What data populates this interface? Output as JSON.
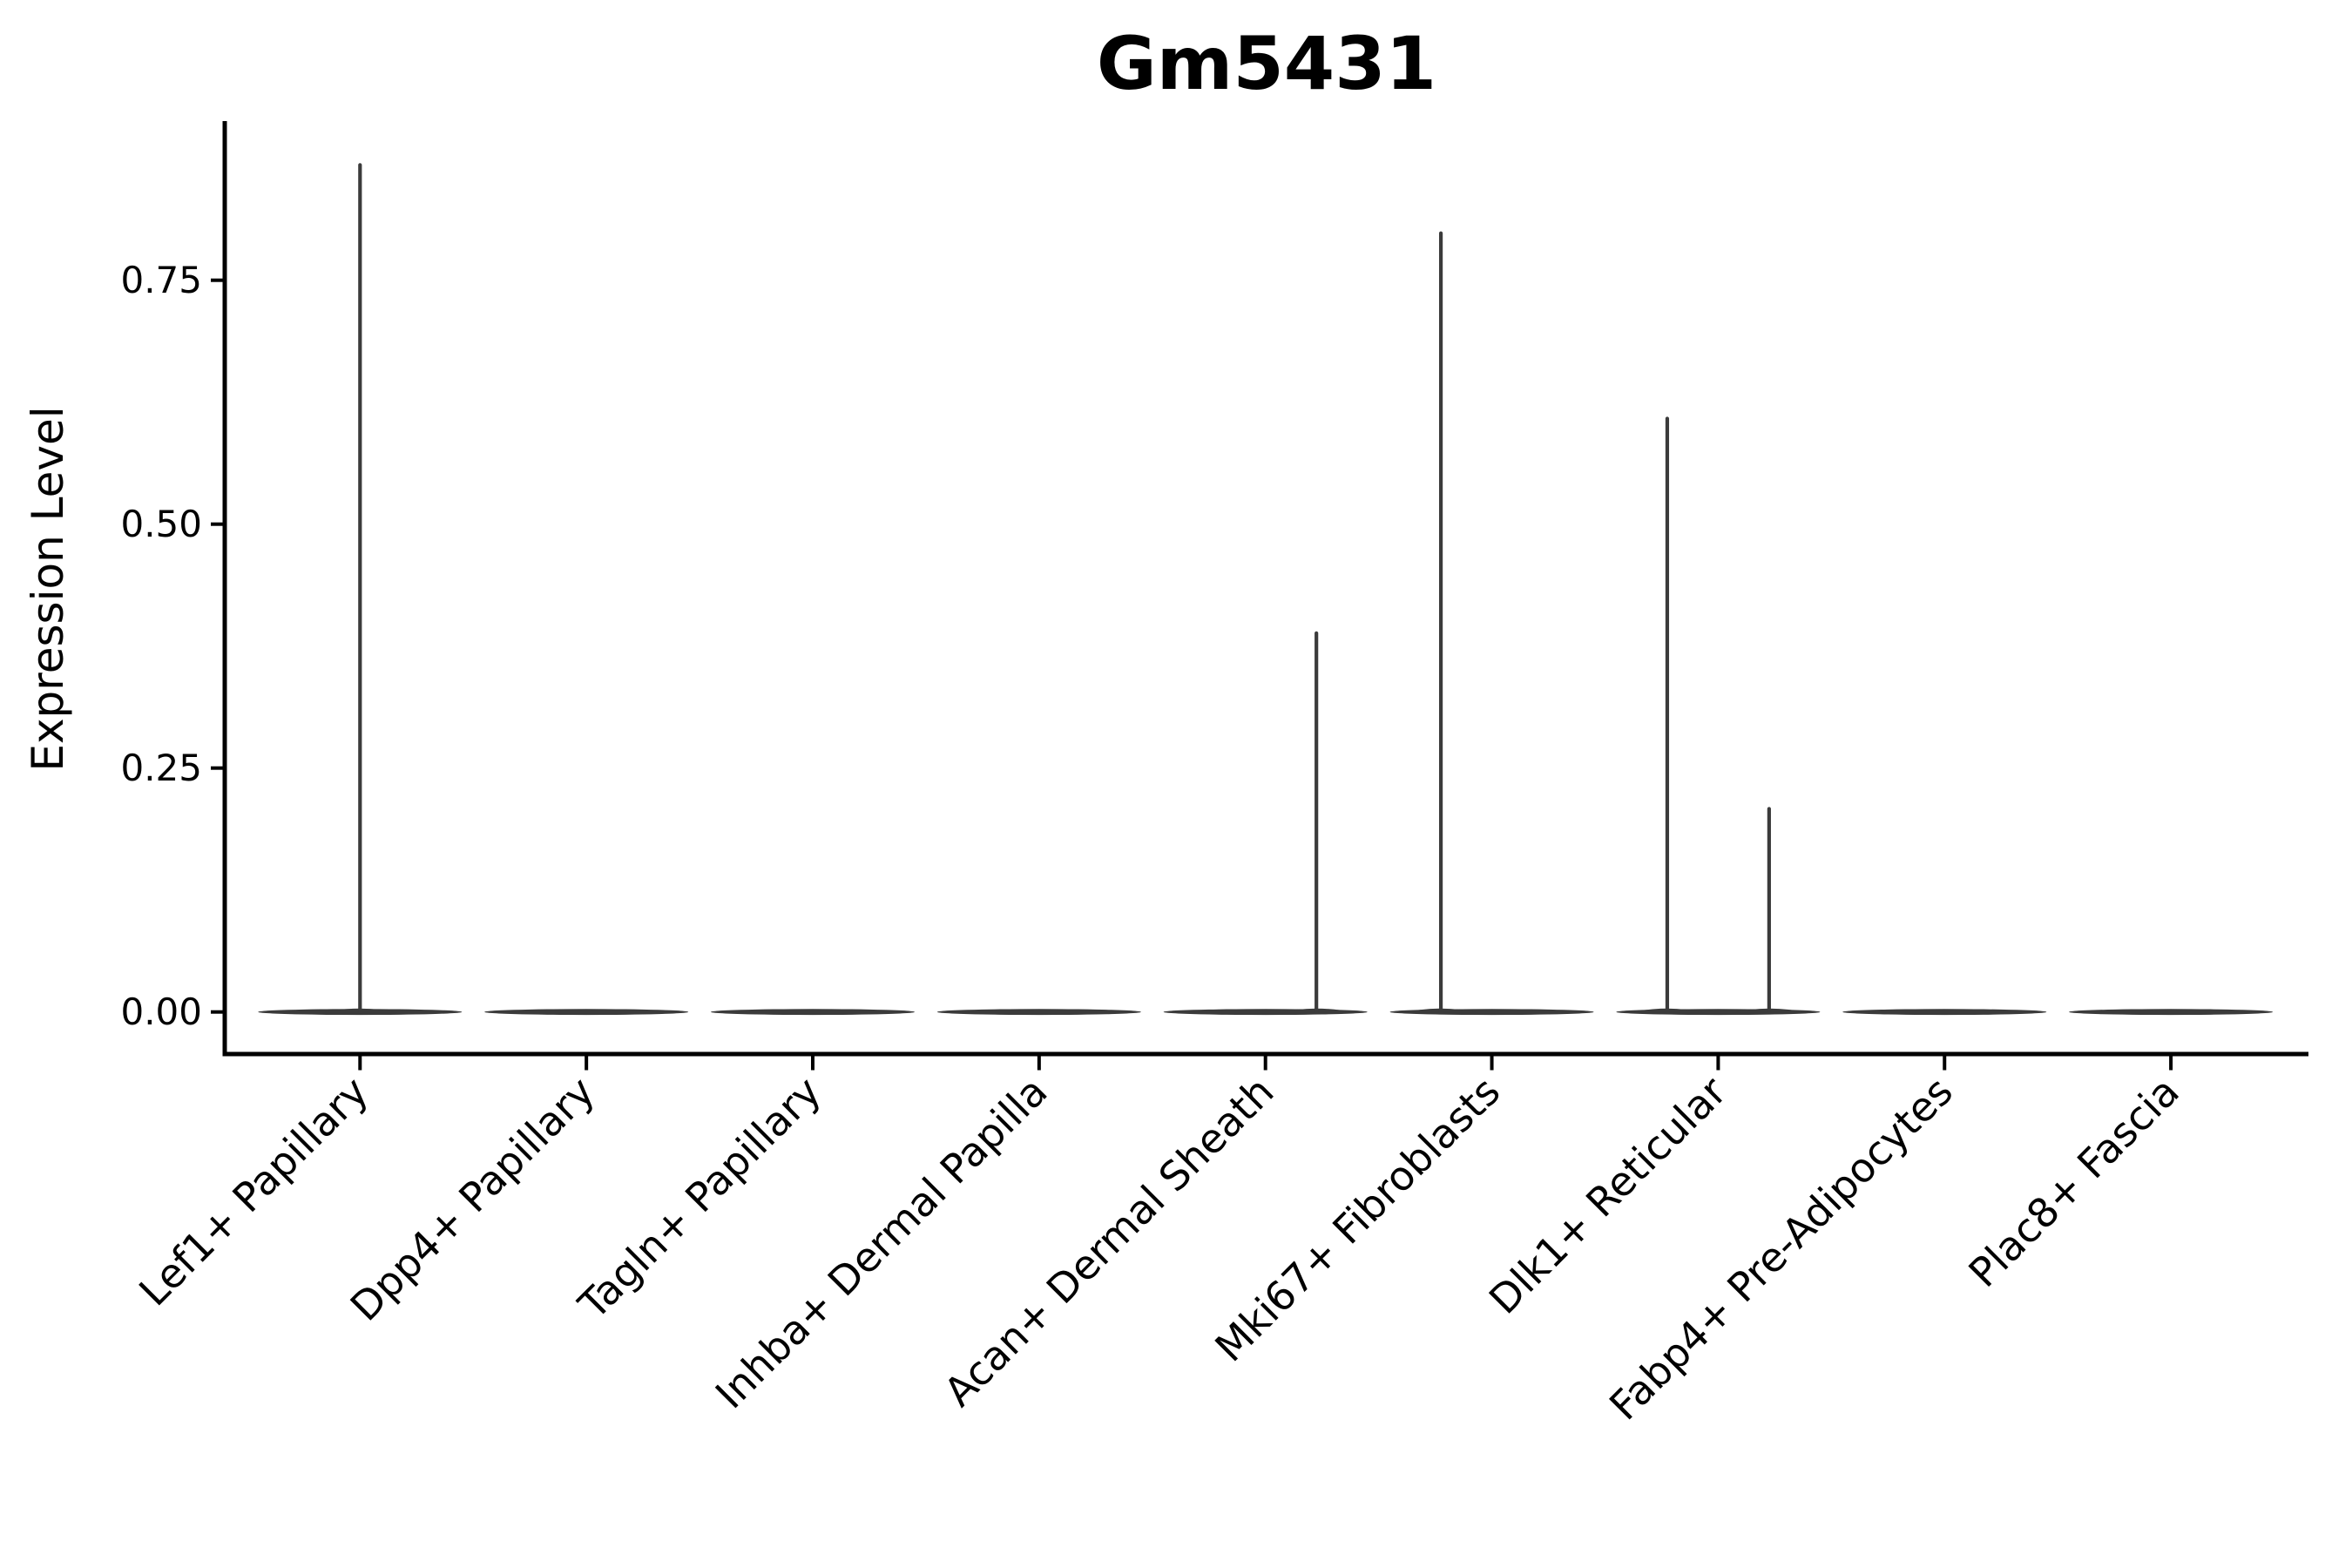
{
  "figure": {
    "title": "Gm5431",
    "background_color": "#ffffff"
  },
  "chart_data": {
    "type": "violin",
    "title": "Gm5431",
    "xlabel": "",
    "ylabel": "Expression Level",
    "grid": false,
    "legend": "none",
    "ylim": [
      -0.045,
      0.915
    ],
    "yticks": {
      "values": [
        0.0,
        0.25,
        0.5,
        0.75
      ],
      "labels": [
        "0.00",
        "0.25",
        "0.50",
        "0.75"
      ]
    },
    "categories": [
      "Lef1+ Papillary",
      "Dpp4+ Papillary",
      "Tagln+ Papillary",
      "Inhba+ Dermal Papilla",
      "Acan+ Dermal Sheath",
      "Mki67+ Fibroblasts",
      "Dlk1+ Reticular",
      "Fabp4+ Pre-Adipocytes",
      "Plac8+ Fascia"
    ],
    "violins": [
      {
        "category": "Lef1+ Papillary",
        "slug": "lef1-papillary",
        "body_value": 0.0,
        "max_expression": 0.87,
        "spikes": [
          {
            "x_offset": 0.0,
            "value": 0.87
          }
        ]
      },
      {
        "category": "Dpp4+ Papillary",
        "slug": "dpp4-papillary",
        "body_value": 0.0,
        "max_expression": 0.0,
        "spikes": []
      },
      {
        "category": "Tagln+ Papillary",
        "slug": "tagln-papillary",
        "body_value": 0.0,
        "max_expression": 0.0,
        "spikes": []
      },
      {
        "category": "Inhba+ Dermal Papilla",
        "slug": "inhba-dermal-papilla",
        "body_value": 0.0,
        "max_expression": 0.0,
        "spikes": []
      },
      {
        "category": "Acan+ Dermal Sheath",
        "slug": "acan-dermal-sheath",
        "body_value": 0.0,
        "max_expression": 0.39,
        "spikes": [
          {
            "x_offset": 0.225,
            "value": 0.39
          }
        ]
      },
      {
        "category": "Mki67+ Fibroblasts",
        "slug": "mki67-fibroblasts",
        "body_value": 0.0,
        "max_expression": 0.8,
        "spikes": [
          {
            "x_offset": -0.225,
            "value": 0.8
          }
        ]
      },
      {
        "category": "Dlk1+ Reticular",
        "slug": "dlk1-reticular",
        "body_value": 0.0,
        "max_expression": 0.61,
        "spikes": [
          {
            "x_offset": -0.225,
            "value": 0.61
          },
          {
            "x_offset": 0.225,
            "value": 0.21
          }
        ]
      },
      {
        "category": "Fabp4+ Pre-Adipocytes",
        "slug": "fabp4-pre-adipocytes",
        "body_value": 0.0,
        "max_expression": 0.0,
        "spikes": []
      },
      {
        "category": "Plac8+ Fascia",
        "slug": "plac8-fascia",
        "body_value": 0.0,
        "max_expression": 0.0,
        "spikes": []
      }
    ],
    "colors": {
      "violin": "#3b3b3b",
      "axis": "#000000",
      "text": "#000000"
    }
  }
}
